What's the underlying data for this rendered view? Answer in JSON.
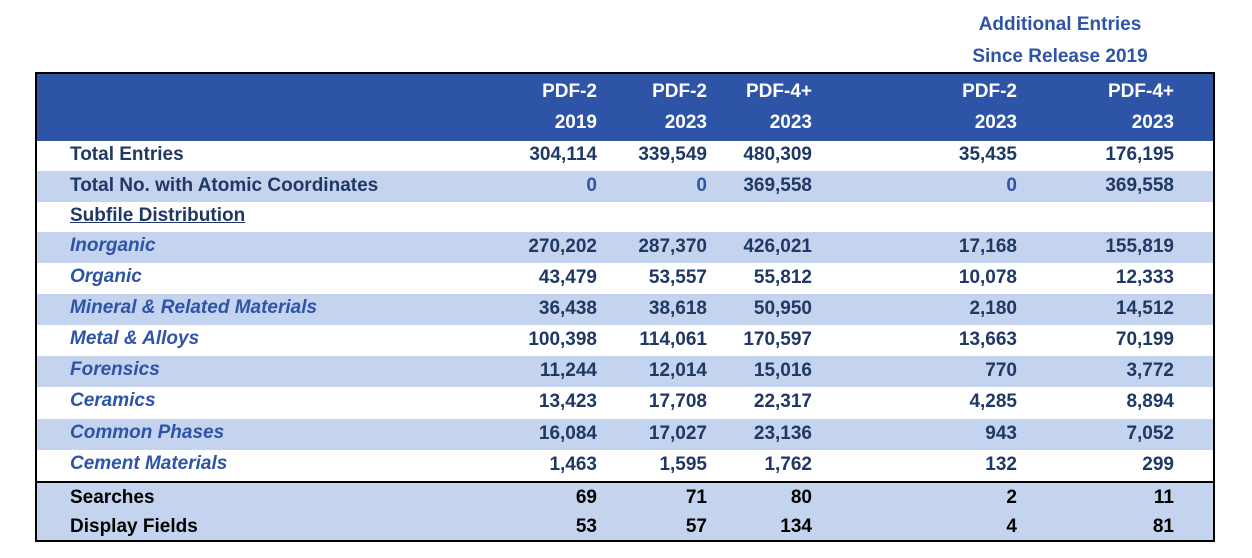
{
  "above_header": {
    "line1": "Additional Entries",
    "line2": "Since Release 2019"
  },
  "columns": [
    {
      "line1": "PDF-2",
      "line2": "2019"
    },
    {
      "line1": "PDF-2",
      "line2": "2023"
    },
    {
      "line1": "PDF-4+",
      "line2": "2023"
    },
    {
      "line1": "PDF-2",
      "line2": "2023"
    },
    {
      "line1": "PDF-4+",
      "line2": "2023"
    }
  ],
  "rows": [
    {
      "label": "Total Entries",
      "values": [
        "304,114",
        "339,549",
        "480,309",
        "35,435",
        "176,195"
      ]
    },
    {
      "label": "Total No. with Atomic Coordinates",
      "values": [
        "0",
        "0",
        "369,558",
        "0",
        "369,558"
      ]
    },
    {
      "label": "Subfile Distribution",
      "values": []
    },
    {
      "label": "Inorganic",
      "values": [
        "270,202",
        "287,370",
        "426,021",
        "17,168",
        "155,819"
      ]
    },
    {
      "label": "Organic",
      "values": [
        "43,479",
        "53,557",
        "55,812",
        "10,078",
        "12,333"
      ]
    },
    {
      "label": "Mineral & Related  Materials",
      "values": [
        "36,438",
        "38,618",
        "50,950",
        "2,180",
        "14,512"
      ]
    },
    {
      "label": "Metal & Alloys",
      "values": [
        "100,398",
        "114,061",
        "170,597",
        "13,663",
        "70,199"
      ]
    },
    {
      "label": "Forensics",
      "values": [
        "11,244",
        "12,014",
        "15,016",
        "770",
        "3,772"
      ]
    },
    {
      "label": "Ceramics",
      "values": [
        "13,423",
        "17,708",
        "22,317",
        "4,285",
        "8,894"
      ]
    },
    {
      "label": "Common Phases",
      "values": [
        "16,084",
        "17,027",
        "23,136",
        "943",
        "7,052"
      ]
    },
    {
      "label": "Cement Materials",
      "values": [
        "1,463",
        "1,595",
        "1,762",
        "132",
        "299"
      ]
    },
    {
      "label": "Searches",
      "values": [
        "69",
        "71",
        "80",
        "2",
        "11"
      ]
    },
    {
      "label": "Display Fields",
      "values": [
        "53",
        "57",
        "134",
        "4",
        "81"
      ]
    }
  ]
}
